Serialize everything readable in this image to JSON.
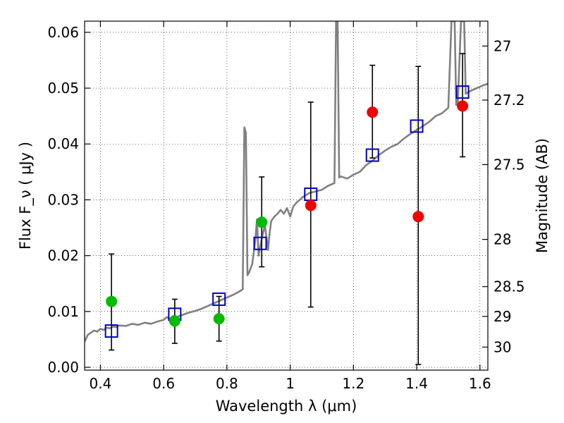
{
  "chart_data": {
    "type": "scatter",
    "title": "",
    "xlabel": "Wavelength  λ (μm)",
    "ylabel": "Flux  F_ν  ( μJy )",
    "y2label": "Magnitude (AB)",
    "xlim": [
      0.35,
      1.625
    ],
    "ylim": [
      -0.0005,
      0.062
    ],
    "grid": true,
    "grid_style": "dotted",
    "x_ticks": [
      {
        "value": 0.4,
        "label": "0.4"
      },
      {
        "value": 0.6,
        "label": "0.6"
      },
      {
        "value": 0.8,
        "label": "0.8"
      },
      {
        "value": 1.0,
        "label": "1"
      },
      {
        "value": 1.2,
        "label": "1.2"
      },
      {
        "value": 1.4,
        "label": "1.4"
      },
      {
        "value": 1.6,
        "label": "1.6"
      }
    ],
    "y_ticks": [
      {
        "value": 0.0,
        "label": "0.00"
      },
      {
        "value": 0.01,
        "label": "0.01"
      },
      {
        "value": 0.02,
        "label": "0.02"
      },
      {
        "value": 0.03,
        "label": "0.03"
      },
      {
        "value": 0.04,
        "label": "0.04"
      },
      {
        "value": 0.05,
        "label": "0.05"
      },
      {
        "value": 0.06,
        "label": "0.06"
      }
    ],
    "y2_ticks": [
      {
        "value": 27,
        "label": "27"
      },
      {
        "value": 27.2,
        "label": "27.2"
      },
      {
        "value": 27.5,
        "label": "27.5"
      },
      {
        "value": 28,
        "label": "28"
      },
      {
        "value": 28.5,
        "label": "28.5"
      },
      {
        "value": 29,
        "label": "29"
      },
      {
        "value": 30,
        "label": "30"
      }
    ],
    "model_spectrum": {
      "color": "#808080",
      "points": [
        [
          0.35,
          0.0046
        ],
        [
          0.36,
          0.0058
        ],
        [
          0.37,
          0.0062
        ],
        [
          0.38,
          0.0066
        ],
        [
          0.39,
          0.0064
        ],
        [
          0.4,
          0.0069
        ],
        [
          0.41,
          0.0067
        ],
        [
          0.42,
          0.0071
        ],
        [
          0.43,
          0.007
        ],
        [
          0.44,
          0.0073
        ],
        [
          0.45,
          0.0072
        ],
        [
          0.46,
          0.0075
        ],
        [
          0.48,
          0.0074
        ],
        [
          0.5,
          0.0078
        ],
        [
          0.52,
          0.0076
        ],
        [
          0.54,
          0.008
        ],
        [
          0.56,
          0.0078
        ],
        [
          0.58,
          0.0082
        ],
        [
          0.6,
          0.0085
        ],
        [
          0.61,
          0.009
        ],
        [
          0.62,
          0.0087
        ],
        [
          0.63,
          0.0092
        ],
        [
          0.64,
          0.009
        ],
        [
          0.66,
          0.0094
        ],
        [
          0.68,
          0.0098
        ],
        [
          0.7,
          0.0101
        ],
        [
          0.72,
          0.0105
        ],
        [
          0.74,
          0.011
        ],
        [
          0.76,
          0.0115
        ],
        [
          0.78,
          0.012
        ],
        [
          0.8,
          0.0125
        ],
        [
          0.82,
          0.013
        ],
        [
          0.84,
          0.0136
        ],
        [
          0.85,
          0.014
        ],
        [
          0.855,
          0.043
        ],
        [
          0.86,
          0.042
        ],
        [
          0.865,
          0.0165
        ],
        [
          0.87,
          0.017
        ],
        [
          0.88,
          0.0185
        ],
        [
          0.89,
          0.023
        ],
        [
          0.895,
          0.0265
        ],
        [
          0.9,
          0.02
        ],
        [
          0.91,
          0.023
        ],
        [
          0.92,
          0.0255
        ],
        [
          0.93,
          0.021
        ],
        [
          0.935,
          0.024
        ],
        [
          0.94,
          0.0262
        ],
        [
          0.95,
          0.027
        ],
        [
          0.96,
          0.0275
        ],
        [
          0.97,
          0.0282
        ],
        [
          0.98,
          0.0275
        ],
        [
          0.99,
          0.0285
        ],
        [
          1.0,
          0.027
        ],
        [
          1.01,
          0.0288
        ],
        [
          1.02,
          0.0295
        ],
        [
          1.04,
          0.0305
        ],
        [
          1.06,
          0.0312
        ],
        [
          1.08,
          0.0315
        ],
        [
          1.1,
          0.0318
        ],
        [
          1.12,
          0.0325
        ],
        [
          1.14,
          0.033
        ],
        [
          1.145,
          0.062
        ],
        [
          1.15,
          0.062
        ],
        [
          1.155,
          0.034
        ],
        [
          1.16,
          0.0342
        ],
        [
          1.18,
          0.0338
        ],
        [
          1.2,
          0.0345
        ],
        [
          1.22,
          0.035
        ],
        [
          1.24,
          0.0362
        ],
        [
          1.26,
          0.037
        ],
        [
          1.28,
          0.038
        ],
        [
          1.3,
          0.0388
        ],
        [
          1.32,
          0.0395
        ],
        [
          1.34,
          0.04
        ],
        [
          1.36,
          0.041
        ],
        [
          1.38,
          0.0418
        ],
        [
          1.4,
          0.0425
        ],
        [
          1.42,
          0.0432
        ],
        [
          1.44,
          0.044
        ],
        [
          1.46,
          0.045
        ],
        [
          1.48,
          0.0455
        ],
        [
          1.5,
          0.0465
        ],
        [
          1.51,
          0.062
        ],
        [
          1.52,
          0.062
        ],
        [
          1.525,
          0.047
        ],
        [
          1.53,
          0.0475
        ],
        [
          1.54,
          0.062
        ],
        [
          1.55,
          0.062
        ],
        [
          1.555,
          0.049
        ],
        [
          1.57,
          0.0495
        ],
        [
          1.59,
          0.05
        ],
        [
          1.61,
          0.0505
        ],
        [
          1.625,
          0.0508
        ]
      ]
    },
    "model_photometry": {
      "color": "#0000cc",
      "marker": "open-square",
      "points": [
        [
          0.435,
          0.0065
        ],
        [
          0.635,
          0.0095
        ],
        [
          0.775,
          0.0122
        ],
        [
          0.905,
          0.0222
        ],
        [
          1.065,
          0.031
        ],
        [
          1.26,
          0.038
        ],
        [
          1.4,
          0.0432
        ],
        [
          1.545,
          0.0493
        ]
      ]
    },
    "observed_green": {
      "color": "#00bb00",
      "points": [
        {
          "x": 0.435,
          "y": 0.0118,
          "yerr_low": 0.0087,
          "yerr_high": 0.0085
        },
        {
          "x": 0.635,
          "y": 0.0083,
          "yerr_low": 0.004,
          "yerr_high": 0.0039
        },
        {
          "x": 0.775,
          "y": 0.0087,
          "yerr_low": 0.004,
          "yerr_high": 0.004
        },
        {
          "x": 0.91,
          "y": 0.026,
          "yerr_low": 0.008,
          "yerr_high": 0.0081
        }
      ]
    },
    "observed_red": {
      "color": "#ee0000",
      "points": [
        {
          "x": 1.065,
          "y": 0.029,
          "yerr_low": 0.0182,
          "yerr_high": 0.0185
        },
        {
          "x": 1.26,
          "y": 0.0457,
          "yerr_low": 0.0082,
          "yerr_high": 0.0084
        },
        {
          "x": 1.405,
          "y": 0.027,
          "yerr_low": 0.0265,
          "yerr_high": 0.0269
        },
        {
          "x": 1.545,
          "y": 0.0468,
          "yerr_low": 0.0091,
          "yerr_high": 0.0094
        }
      ]
    }
  }
}
